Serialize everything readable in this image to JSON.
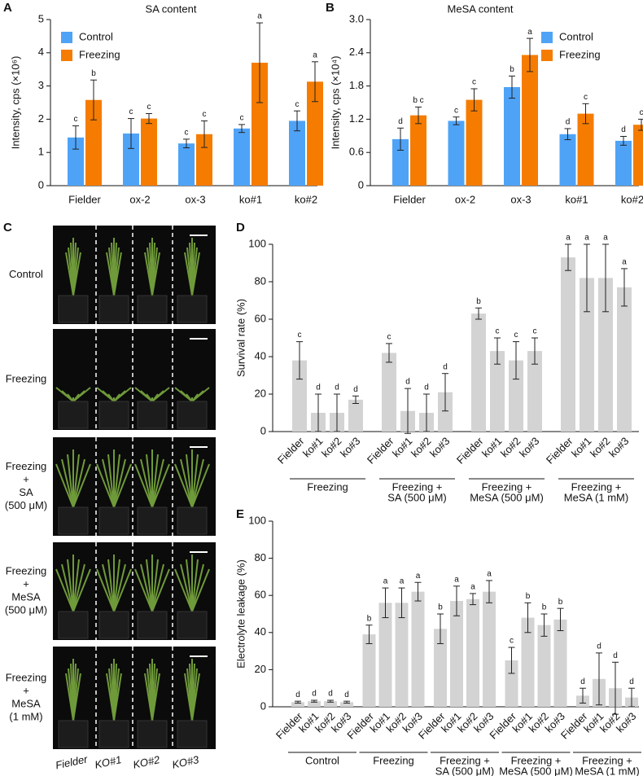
{
  "panel_labels": [
    "A",
    "B",
    "C",
    "D",
    "E"
  ],
  "chart_data": [
    {
      "type": "bar",
      "title": "SA content",
      "y_label": "Intensity, cps (×10⁶)",
      "categories": [
        "Fielder",
        "ox-2",
        "ox-3",
        "ko#1",
        "ko#2"
      ],
      "series": [
        {
          "name": "Control",
          "color": "#4fa3f7",
          "values": [
            1.45,
            1.57,
            1.27,
            1.72,
            1.95
          ],
          "errors": [
            0.35,
            0.45,
            0.13,
            0.12,
            0.3
          ],
          "letters": [
            "c",
            "c",
            "c",
            "c",
            "c"
          ]
        },
        {
          "name": "Freezing",
          "color": "#f57c00",
          "values": [
            2.58,
            2.02,
            1.55,
            3.7,
            3.13
          ],
          "errors": [
            0.6,
            0.15,
            0.4,
            1.2,
            0.6
          ],
          "letters": [
            "b",
            "c",
            "c",
            "a",
            "a"
          ]
        }
      ],
      "ylim": [
        0,
        5
      ],
      "yticks": [
        0,
        1,
        2,
        3,
        4,
        5
      ],
      "legend": "upper left"
    },
    {
      "type": "bar",
      "title": "MeSA content",
      "y_label": "Intensity, cps (×10⁴)",
      "categories": [
        "Fielder",
        "ox-2",
        "ox-3",
        "ko#1",
        "ko#2"
      ],
      "series": [
        {
          "name": "Control",
          "color": "#4fa3f7",
          "values": [
            0.84,
            1.17,
            1.78,
            0.93,
            0.81
          ],
          "errors": [
            0.2,
            0.07,
            0.2,
            0.1,
            0.08
          ],
          "letters": [
            "d",
            "c",
            "b",
            "d",
            "d"
          ]
        },
        {
          "name": "Freezing",
          "color": "#f57c00",
          "values": [
            1.27,
            1.55,
            2.36,
            1.3,
            1.1
          ],
          "errors": [
            0.15,
            0.2,
            0.3,
            0.18,
            0.1
          ],
          "letters": [
            "b c",
            "c",
            "a",
            "c",
            "c"
          ]
        }
      ],
      "ylim": [
        0,
        3
      ],
      "yticks": [
        0,
        0.6,
        1.2,
        1.8,
        2.4,
        {
          "value": 3,
          "label": "3.0"
        }
      ],
      "legend": "upper right"
    },
    {
      "type": "grouped_bar",
      "y_label": "Survival rate (%)",
      "color": "#d3d3d3",
      "groups": [
        {
          "label": [
            "Freezing"
          ],
          "categories": [
            "Fielder",
            "ko#1",
            "ko#2",
            "ko#3"
          ],
          "values": [
            38,
            10,
            10,
            17
          ],
          "errors": [
            10,
            10,
            10,
            2
          ],
          "letters": [
            "c",
            "d",
            "d",
            "d"
          ]
        },
        {
          "label": [
            "Freezing +",
            "SA (500 μM)"
          ],
          "categories": [
            "Fielder",
            "ko#1",
            "ko#2",
            "ko#3"
          ],
          "values": [
            42,
            11,
            10,
            21
          ],
          "errors": [
            5,
            12,
            10,
            10
          ],
          "letters": [
            "c",
            "d",
            "d",
            "d"
          ]
        },
        {
          "label": [
            "Freezing +",
            "MeSA (500 μM)"
          ],
          "categories": [
            "Fielder",
            "ko#1",
            "ko#2",
            "ko#3"
          ],
          "values": [
            63,
            43,
            38,
            43
          ],
          "errors": [
            3,
            7,
            10,
            7
          ],
          "letters": [
            "b",
            "c",
            "c",
            "c"
          ]
        },
        {
          "label": [
            "Freezing +",
            "MeSA (1 mM)"
          ],
          "categories": [
            "Fielder",
            "ko#1",
            "ko#2",
            "ko#3"
          ],
          "values": [
            93,
            82,
            82,
            77
          ],
          "errors": [
            7,
            18,
            18,
            10
          ],
          "letters": [
            "a",
            "a",
            "a",
            "a"
          ]
        }
      ],
      "ylim": [
        0,
        100
      ],
      "yticks": [
        0,
        20,
        40,
        60,
        80,
        100
      ]
    },
    {
      "type": "grouped_bar",
      "y_label": "Electrolyte leakage (%)",
      "color": "#d3d3d3",
      "groups": [
        {
          "label": [
            "Control"
          ],
          "categories": [
            "Fielder",
            "ko#1",
            "ko#2",
            "ko#3"
          ],
          "values": [
            2.5,
            3,
            3,
            2.5
          ],
          "errors": [
            0.5,
            0.5,
            0.5,
            0.5
          ],
          "letters": [
            "d",
            "d",
            "d",
            "d"
          ]
        },
        {
          "label": [
            "Freezing"
          ],
          "categories": [
            "Fielder",
            "ko#1",
            "ko#2",
            "ko#3"
          ],
          "values": [
            39,
            56,
            56,
            62
          ],
          "errors": [
            5,
            8,
            8,
            5
          ],
          "letters": [
            "b",
            "a",
            "a",
            "a"
          ]
        },
        {
          "label": [
            "Freezing +",
            "SA (500 μM)"
          ],
          "categories": [
            "Fielder",
            "ko#1",
            "ko#2",
            "ko#3"
          ],
          "values": [
            42,
            57,
            58,
            62
          ],
          "errors": [
            8,
            8,
            3,
            6
          ],
          "letters": [
            "b",
            "a",
            "a",
            "a"
          ]
        },
        {
          "label": [
            "Freezing +",
            "MeSA (500 μM)"
          ],
          "categories": [
            "Fielder",
            "ko#1",
            "ko#2",
            "ko#3"
          ],
          "values": [
            25,
            48,
            44,
            47
          ],
          "errors": [
            7,
            8,
            6,
            6
          ],
          "letters": [
            "c",
            "b",
            "b",
            "b"
          ]
        },
        {
          "label": [
            "Freezing +",
            "MeSA (1 mM)"
          ],
          "categories": [
            "Fielder",
            "ko#1",
            "ko#2",
            "ko#3"
          ],
          "values": [
            6,
            15,
            10,
            5
          ],
          "errors": [
            4,
            14,
            14,
            5
          ],
          "letters": [
            "d",
            "d",
            "d",
            "d"
          ]
        }
      ],
      "ylim": [
        0,
        100
      ],
      "yticks": [
        0,
        20,
        40,
        60,
        80,
        100
      ]
    }
  ],
  "photo_panel": {
    "rows": [
      [
        "Control"
      ],
      [
        "Freezing"
      ],
      [
        "Freezing",
        "+",
        "SA",
        "(500 μM)"
      ],
      [
        "Freezing",
        "+",
        "MeSA",
        "(500 μM)"
      ],
      [
        "Freezing",
        "+",
        "MeSA",
        "(1 mM)"
      ]
    ],
    "columns": [
      "Fielder",
      "KO#1",
      "KO#2",
      "KO#3"
    ]
  }
}
